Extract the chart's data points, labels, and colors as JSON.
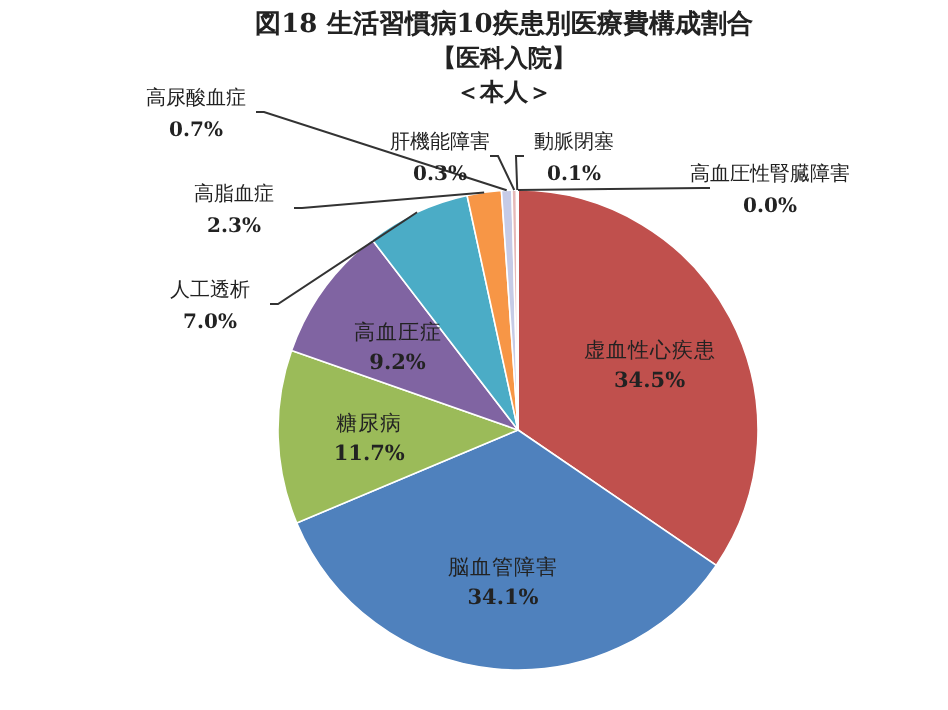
{
  "chart_data": {
    "type": "pie",
    "title": "図18 生活習慣病10疾患別医療費構成割合",
    "subtitle": "【医科入院】",
    "annotations": [
      "＜本人＞"
    ],
    "categories": [
      "虚血性心疾患",
      "脳血管障害",
      "糖尿病",
      "高血圧症",
      "人工透析",
      "高脂血症",
      "高尿酸血症",
      "肝機能障害",
      "動脈閉塞",
      "高血圧性腎臓障害"
    ],
    "values": [
      34.5,
      34.1,
      11.7,
      9.2,
      7.0,
      2.3,
      0.7,
      0.3,
      0.1,
      0.0
    ],
    "value_labels": [
      "34.5%",
      "34.1%",
      "11.7%",
      "9.2%",
      "7.0%",
      "2.3%",
      "0.7%",
      "0.3%",
      "0.1%",
      "0.0%"
    ],
    "colors": [
      "#c0504d",
      "#4f81bd",
      "#9bbb59",
      "#8064a2",
      "#4bacc6",
      "#f79646",
      "#c6cbe6",
      "#e6b9b8",
      "#d0d0d0",
      "#a0a0a0"
    ]
  }
}
